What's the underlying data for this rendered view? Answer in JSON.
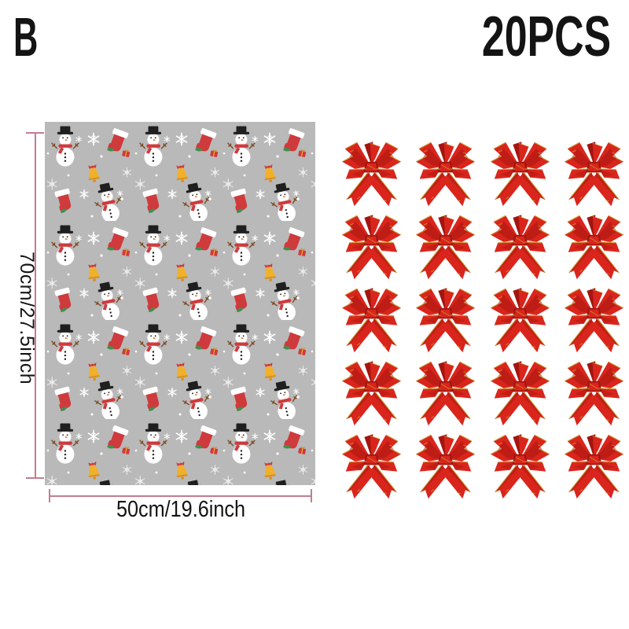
{
  "variant_label": "B",
  "quantity_label": "20PCS",
  "paper": {
    "height_label": "70cm/27.5inch",
    "width_label": "50cm/19.6inch",
    "background_color": "#b9b9b9",
    "pattern_motifs": [
      "snowman-with-top-hat",
      "christmas-stocking",
      "snowflake",
      "gold-bell",
      "gift-box"
    ]
  },
  "bows": {
    "count": 20,
    "columns": 4,
    "rows": 5,
    "item_name": "red-pull-bow",
    "color": "#d9251c",
    "trim_color": "#c8942c"
  },
  "colors": {
    "background": "#ffffff",
    "text": "#141414",
    "dimension_line": "#c17e8e",
    "motif_red": "#cf3a3c",
    "motif_green": "#3f8f4f",
    "motif_gold": "#efb02c",
    "bow_dark": "#a31510"
  }
}
